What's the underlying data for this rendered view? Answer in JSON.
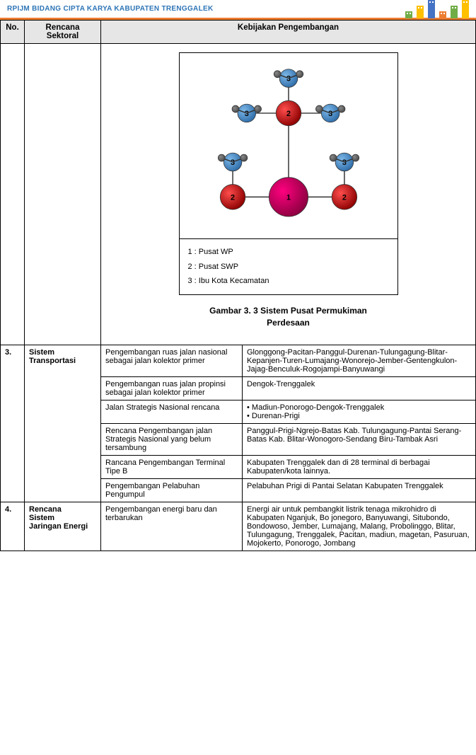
{
  "header": {
    "title": "RPIJM BIDANG CIPTA KARYA KABUPATEN TRENGGALEK",
    "title_color": "#2e75b6",
    "underline_color": "#ed7d31",
    "building_colors": [
      "#70ad47",
      "#ffc000",
      "#4472c4",
      "#ed7d31",
      "#70ad47",
      "#ffc000"
    ]
  },
  "table": {
    "head": {
      "no": "No.",
      "sektoral": "Rencana\nSektoral",
      "kebijakan": "Kebijakan Pengembangan"
    },
    "diagram": {
      "legend": {
        "l1": "1 : Pusat WP",
        "l2": "2 : Pusat SWP",
        "l3": "3 : Ibu Kota Kecamatan"
      },
      "caption_l1": "Gambar 3. 3 Sistem Pusat Permukiman",
      "caption_l2": "Perdesaan",
      "bg_color": "#ffffff",
      "box_border": "#000000",
      "nodes": {
        "center": {
          "label": "1",
          "fill1": "#ff007f",
          "fill2": "#8b003f",
          "r": 28
        },
        "swp_top": {
          "label": "2",
          "fill1": "#ff4d4d",
          "fill2": "#8b0000",
          "r": 18
        },
        "swp_left": {
          "label": "2",
          "fill1": "#ff4d4d",
          "fill2": "#8b0000",
          "r": 18
        },
        "swp_right": {
          "label": "2",
          "fill1": "#ff4d4d",
          "fill2": "#8b0000",
          "r": 18
        },
        "ikk_fill1": "#7db8e8",
        "ikk_fill2": "#2e6ca8",
        "ikk_r": 13,
        "small_fill": "#4a4a4a",
        "small_r": 5,
        "line_color": "#333333",
        "label_color": "#000000",
        "label_font": 11
      }
    },
    "row3": {
      "no": "3.",
      "sektoral": "Sistem\nTransportasi",
      "items": [
        {
          "k": "Pengembangan ruas jalan nasional sebagai jalan kolektor primer",
          "v": "Glonggong-Pacitan-Panggul-Durenan-Tulungagung-Blitar-Kepanjen-Turen-Lumajang-Wonorejo-Jember-Gentengkulon-Jajag-Benculuk-Rogojampi-Banyuwangi"
        },
        {
          "k": "Pengembangan ruas jalan propinsi sebagai jalan kolektor primer",
          "v": "Dengok-Trenggalek"
        },
        {
          "k": "Jalan Strategis Nasional rencana",
          "v_list": [
            "Madiun-Ponorogo-Dengok-Trenggalek",
            "Durenan-Prigi"
          ]
        },
        {
          "k": "Rencana Pengembangan jalan Strategis Nasional yang belum tersambung",
          "v": "Panggul-Prigi-Ngrejo-Batas Kab. Tulungagung-Pantai Serang-Batas Kab. Blitar-Wonogoro-Sendang Biru-Tambak Asri"
        },
        {
          "k": "Rancana Pengembangan Terminal Tipe B",
          "v": "Kabupaten Trenggalek dan di 28 terminal di berbagai Kabupaten/kota lainnya."
        },
        {
          "k": "Pengembangan Pelabuhan Pengumpul",
          "v": "Pelabuhan Prigi di Pantai Selatan Kabupaten Trenggalek"
        }
      ]
    },
    "row4": {
      "no": "4.",
      "sektoral": "Rencana\nSistem\nJaringan Energi",
      "items": [
        {
          "k": "Pengembangan energi baru dan terbarukan",
          "v": "Energi air untuk pembangkit listrik tenaga mikrohidro di Kabupaten Nganjuk, Bo jonegoro, Banyuwangi, Situbondo, Bondowoso, Jember, Lumajang, Malang, Probolinggo, Blitar, Tulungagung, Trenggalek, Pacitan, madiun, magetan, Pasuruan, Mojokerto, Ponorogo, Jombang"
        }
      ]
    }
  }
}
